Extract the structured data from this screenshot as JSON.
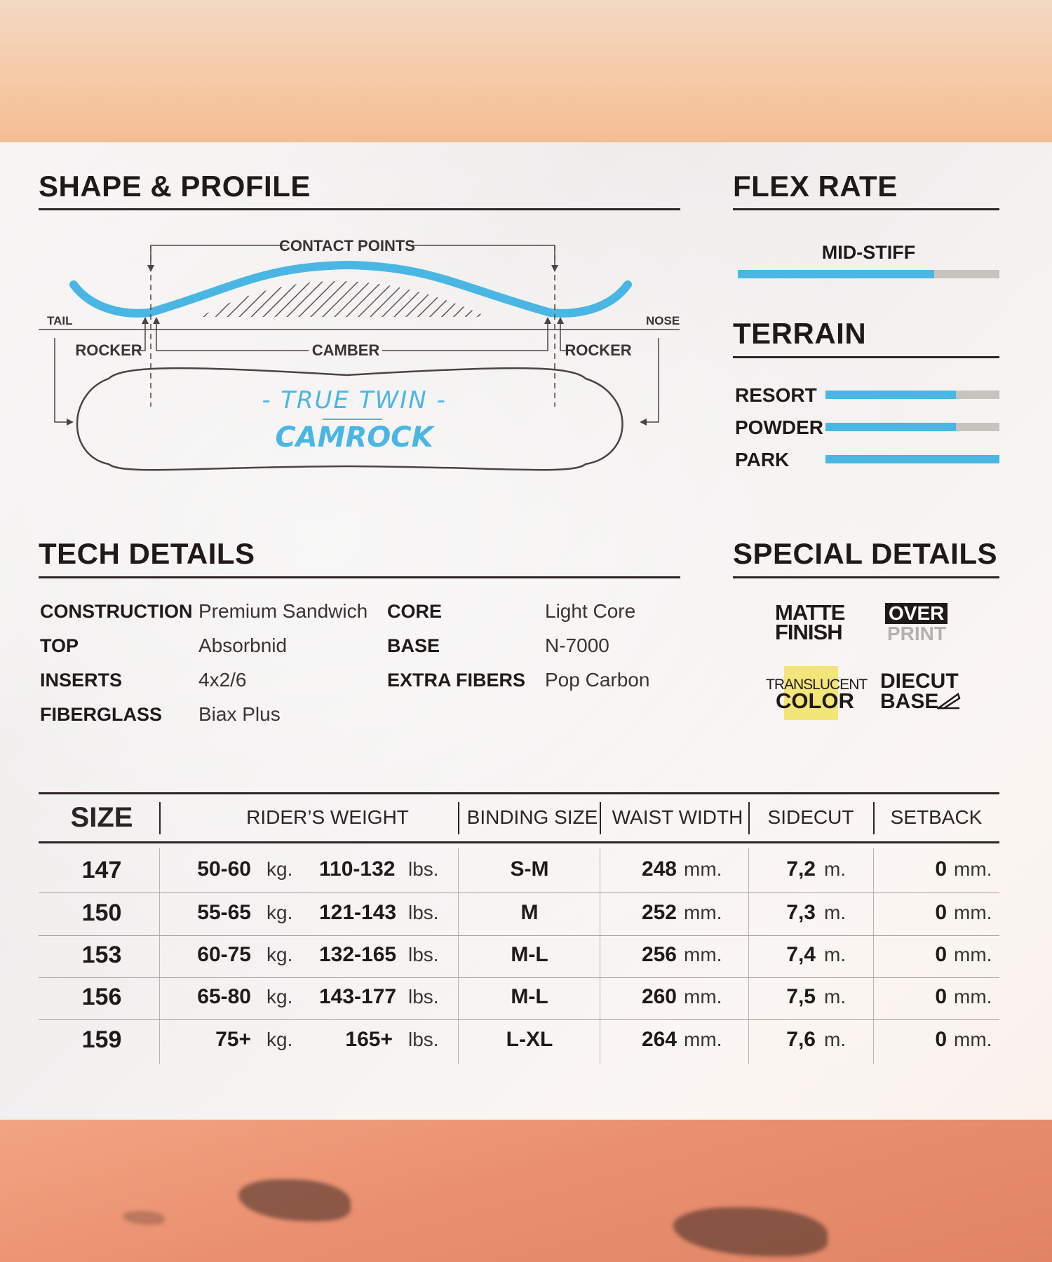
{
  "shape_profile": {
    "title": "SHAPE & PROFILE",
    "contact_points": "CONTACT POINTS",
    "tail": "TAIL",
    "nose": "NOSE",
    "rocker_left": "ROCKER",
    "camber": "CAMBER",
    "rocker_right": "ROCKER",
    "shape_name": "- TRUE TWIN -",
    "profile_name": "CAMROCK",
    "accent_color": "#4ab6e3"
  },
  "flex_rate": {
    "title": "FLEX RATE",
    "label": "MID-STIFF",
    "level": 0.75
  },
  "terrain": {
    "title": "TERRAIN",
    "items": [
      {
        "label": "RESORT",
        "level": 0.75
      },
      {
        "label": "POWDER",
        "level": 0.75
      },
      {
        "label": "PARK",
        "level": 1.0
      }
    ]
  },
  "tech_details": {
    "title": "TECH DETAILS",
    "left": [
      {
        "key": "CONSTRUCTION",
        "value": "Premium Sandwich"
      },
      {
        "key": "TOP",
        "value": "Absorbnid"
      },
      {
        "key": "INSERTS",
        "value": "4x2/6"
      },
      {
        "key": "FIBERGLASS",
        "value": "Biax Plus"
      }
    ],
    "right": [
      {
        "key": "CORE",
        "value": "Light Core"
      },
      {
        "key": "BASE",
        "value": "N-7000"
      },
      {
        "key": "EXTRA FIBERS",
        "value": "Pop Carbon"
      }
    ]
  },
  "special_details": {
    "title": "SPECIAL DETAILS",
    "matte": [
      "MATTE",
      "FINISH"
    ],
    "overprint": [
      "OVER",
      "PRINT"
    ],
    "translucent": [
      "TRANSLUCENT",
      "COLOR"
    ],
    "diecut": [
      "DIECUT",
      "BASE"
    ],
    "highlight_color": "#f2e57a"
  },
  "size_table": {
    "headers": {
      "size": "SIZE",
      "rider_weight": "RIDER’S WEIGHT",
      "binding_size": "BINDING SIZE",
      "waist_width": "WAIST WIDTH",
      "sidecut": "SIDECUT",
      "setback": "SETBACK"
    },
    "units": {
      "kg": "kg.",
      "lbs": "lbs.",
      "mm": "mm.",
      "m": "m."
    },
    "rows": [
      {
        "size": "147",
        "kg": "50-60",
        "lbs": "110-132",
        "binding": "S-M",
        "waist": "248",
        "sidecut": "7,2",
        "setback": "0"
      },
      {
        "size": "150",
        "kg": "55-65",
        "lbs": "121-143",
        "binding": "M",
        "waist": "252",
        "sidecut": "7,3",
        "setback": "0"
      },
      {
        "size": "153",
        "kg": "60-75",
        "lbs": "132-165",
        "binding": "M-L",
        "waist": "256",
        "sidecut": "7,4",
        "setback": "0"
      },
      {
        "size": "156",
        "kg": "65-80",
        "lbs": "143-177",
        "binding": "M-L",
        "waist": "260",
        "sidecut": "7,5",
        "setback": "0"
      },
      {
        "size": "159",
        "kg": "75+",
        "lbs": "165+",
        "binding": "L-XL",
        "waist": "264",
        "sidecut": "7,6",
        "setback": "0"
      }
    ]
  }
}
